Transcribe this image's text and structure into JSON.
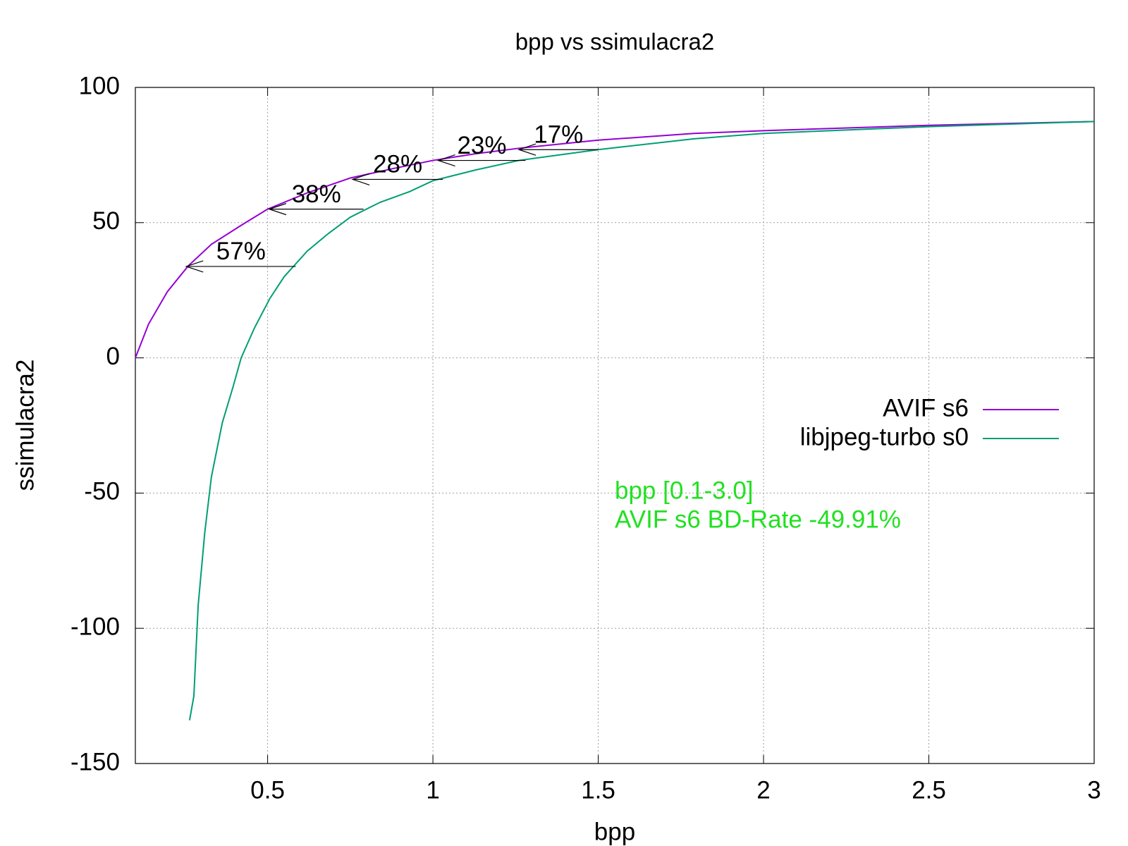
{
  "chart_data": {
    "type": "line",
    "title": "bpp vs ssimulacra2",
    "x_label": "bpp",
    "y_label": "ssimulacra2",
    "xlim": [
      0.1,
      3
    ],
    "ylim": [
      -150,
      100
    ],
    "xticks": [
      0.5,
      1,
      1.5,
      2,
      2.5,
      3
    ],
    "yticks": [
      -150,
      -100,
      -50,
      0,
      50,
      100
    ],
    "grid": true,
    "legend": "right",
    "series": [
      {
        "name": "AVIF s6",
        "color": "#9400d3",
        "x": [
          0.1,
          0.14,
          0.197,
          0.26,
          0.33,
          0.42,
          0.5,
          0.62,
          0.75,
          0.88,
          1.0,
          1.13,
          1.26,
          1.5,
          1.79,
          2.0,
          2.5,
          3.0
        ],
        "values": [
          0,
          12.5,
          24.5,
          34,
          42,
          49,
          55,
          61,
          66.5,
          70,
          73,
          75.5,
          77.5,
          80.5,
          83,
          84,
          86,
          87.4
        ]
      },
      {
        "name": "libjpeg-turbo s0",
        "color": "#009e73",
        "x": [
          0.264,
          0.277,
          0.29,
          0.31,
          0.33,
          0.363,
          0.396,
          0.42,
          0.46,
          0.507,
          0.55,
          0.62,
          0.684,
          0.75,
          0.84,
          0.93,
          1.0,
          1.13,
          1.26,
          1.5,
          1.79,
          2.0,
          2.5,
          3.0
        ],
        "values": [
          -134,
          -125,
          -91.5,
          -64.5,
          -44,
          -24,
          -10.5,
          0,
          11,
          22,
          30,
          39.5,
          46,
          52,
          57.5,
          61.5,
          65.5,
          69.5,
          73,
          77,
          81,
          83,
          85.5,
          87.4
        ]
      }
    ],
    "annotations": [
      {
        "label": "57%",
        "y": 33.8,
        "x_from": 0.585,
        "x_to": 0.254
      },
      {
        "label": "38%",
        "y": 55,
        "x_from": 0.79,
        "x_to": 0.505
      },
      {
        "label": "28%",
        "y": 66,
        "x_from": 1.03,
        "x_to": 0.757
      },
      {
        "label": "23%",
        "y": 73,
        "x_from": 1.28,
        "x_to": 1.016
      },
      {
        "label": "17%",
        "y": 77,
        "x_from": 1.5,
        "x_to": 1.26
      }
    ],
    "notes": [
      "bpp [0.1-3.0]",
      "AVIF s6 BD-Rate -49.91%"
    ],
    "notes_color": "#22e022"
  }
}
